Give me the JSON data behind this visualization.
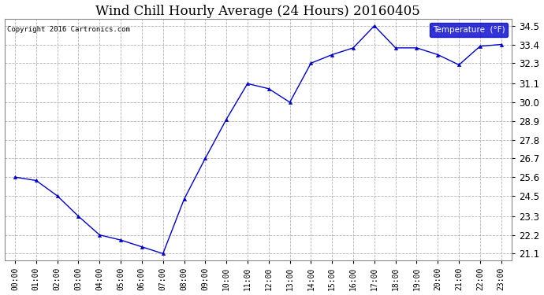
{
  "title": "Wind Chill Hourly Average (24 Hours) 20160405",
  "copyright_text": "Copyright 2016 Cartronics.com",
  "legend_label": "Temperature  (°F)",
  "hours": [
    "00:00",
    "01:00",
    "02:00",
    "03:00",
    "04:00",
    "05:00",
    "06:00",
    "07:00",
    "08:00",
    "09:00",
    "10:00",
    "11:00",
    "12:00",
    "13:00",
    "14:00",
    "15:00",
    "16:00",
    "17:00",
    "18:00",
    "19:00",
    "20:00",
    "21:00",
    "22:00",
    "23:00"
  ],
  "values": [
    25.6,
    25.4,
    24.5,
    23.3,
    22.2,
    21.9,
    21.5,
    21.1,
    24.3,
    26.7,
    29.0,
    31.1,
    30.8,
    30.0,
    32.3,
    32.8,
    33.2,
    34.5,
    33.2,
    33.2,
    32.8,
    32.2,
    33.3,
    33.4
  ],
  "yticks": [
    21.1,
    22.2,
    23.3,
    24.5,
    25.6,
    26.7,
    27.8,
    28.9,
    30.0,
    31.1,
    32.3,
    33.4,
    34.5
  ],
  "ylim": [
    20.7,
    34.9
  ],
  "line_color": "#0000cc",
  "marker": "^",
  "marker_size": 3,
  "background_color": "#ffffff",
  "grid_color": "#aaaaaa",
  "title_fontsize": 12,
  "legend_bg_color": "#0000cc",
  "legend_text_color": "#ffffff"
}
